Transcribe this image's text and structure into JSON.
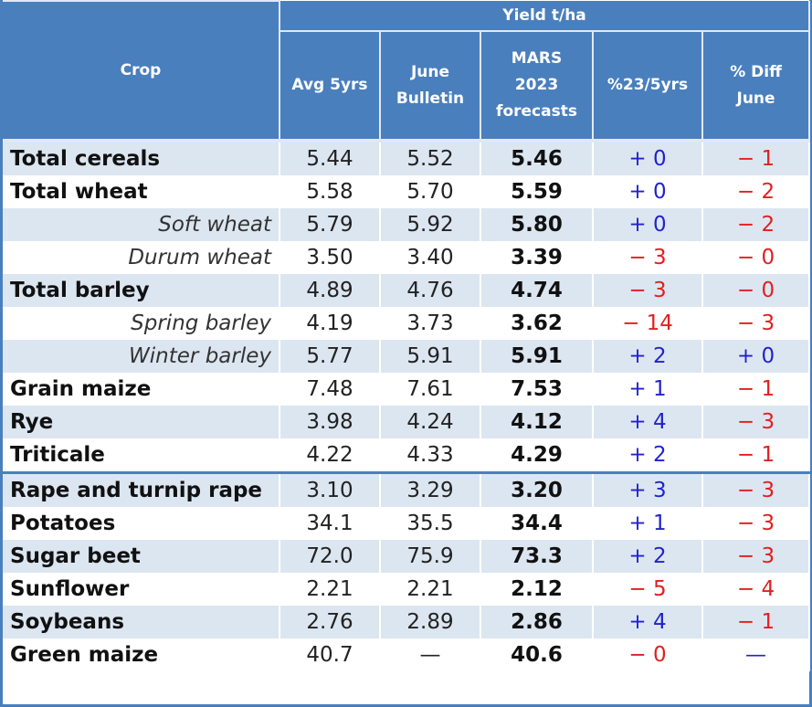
{
  "header": {
    "crop_label": "Crop",
    "group_label": "Yield t/ha",
    "columns": [
      {
        "line1": "Avg 5yrs",
        "line2": "",
        "line3": ""
      },
      {
        "line1": "June",
        "line2": "Bulletin",
        "line3": ""
      },
      {
        "line1": "MARS",
        "line2": "2023",
        "line3": "forecasts"
      },
      {
        "line1": "%23/5yrs",
        "line2": "",
        "line3": ""
      },
      {
        "line1": "% Diff",
        "line2": "June",
        "line3": ""
      }
    ]
  },
  "colors": {
    "header_bg": "#4a7fbd",
    "alt_row": "#dce6f1",
    "positive": "#2222cc",
    "negative": "#e02020"
  },
  "rows": [
    {
      "crop": "Total cereals",
      "sub": false,
      "avg5": "5.44",
      "june": "5.52",
      "mars": "5.46",
      "pct5": "+ 0",
      "pctJune": "− 1",
      "pct5Sign": "pos",
      "pctJuneSign": "neg"
    },
    {
      "crop": "Total wheat",
      "sub": false,
      "avg5": "5.58",
      "june": "5.70",
      "mars": "5.59",
      "pct5": "+ 0",
      "pctJune": "− 2",
      "pct5Sign": "pos",
      "pctJuneSign": "neg"
    },
    {
      "crop": "Soft wheat",
      "sub": true,
      "avg5": "5.79",
      "june": "5.92",
      "mars": "5.80",
      "pct5": "+ 0",
      "pctJune": "− 2",
      "pct5Sign": "pos",
      "pctJuneSign": "neg"
    },
    {
      "crop": "Durum wheat",
      "sub": true,
      "avg5": "3.50",
      "june": "3.40",
      "mars": "3.39",
      "pct5": "− 3",
      "pctJune": "− 0",
      "pct5Sign": "neg",
      "pctJuneSign": "neg"
    },
    {
      "crop": "Total barley",
      "sub": false,
      "avg5": "4.89",
      "june": "4.76",
      "mars": "4.74",
      "pct5": "− 3",
      "pctJune": "− 0",
      "pct5Sign": "neg",
      "pctJuneSign": "neg"
    },
    {
      "crop": "Spring barley",
      "sub": true,
      "avg5": "4.19",
      "june": "3.73",
      "mars": "3.62",
      "pct5": "− 14",
      "pctJune": "− 3",
      "pct5Sign": "neg",
      "pctJuneSign": "neg"
    },
    {
      "crop": "Winter barley",
      "sub": true,
      "avg5": "5.77",
      "june": "5.91",
      "mars": "5.91",
      "pct5": "+ 2",
      "pctJune": "+ 0",
      "pct5Sign": "pos",
      "pctJuneSign": "pos"
    },
    {
      "crop": "Grain maize",
      "sub": false,
      "avg5": "7.48",
      "june": "7.61",
      "mars": "7.53",
      "pct5": "+ 1",
      "pctJune": "− 1",
      "pct5Sign": "pos",
      "pctJuneSign": "neg"
    },
    {
      "crop": "Rye",
      "sub": false,
      "avg5": "3.98",
      "june": "4.24",
      "mars": "4.12",
      "pct5": "+ 4",
      "pctJune": "− 3",
      "pct5Sign": "pos",
      "pctJuneSign": "neg"
    },
    {
      "crop": "Triticale",
      "sub": false,
      "avg5": "4.22",
      "june": "4.33",
      "mars": "4.29",
      "pct5": "+ 2",
      "pctJune": "− 1",
      "pct5Sign": "pos",
      "pctJuneSign": "neg"
    },
    {
      "crop": "Rape and turnip rape",
      "sub": false,
      "avg5": "3.10",
      "june": "3.29",
      "mars": "3.20",
      "pct5": "+ 3",
      "pctJune": "− 3",
      "pct5Sign": "pos",
      "pctJuneSign": "neg"
    },
    {
      "crop": "Potatoes",
      "sub": false,
      "avg5": "34.1",
      "june": "35.5",
      "mars": "34.4",
      "pct5": "+ 1",
      "pctJune": "− 3",
      "pct5Sign": "pos",
      "pctJuneSign": "neg"
    },
    {
      "crop": "Sugar beet",
      "sub": false,
      "avg5": "72.0",
      "june": "75.9",
      "mars": "73.3",
      "pct5": "+ 2",
      "pctJune": "− 3",
      "pct5Sign": "pos",
      "pctJuneSign": "neg"
    },
    {
      "crop": "Sunflower",
      "sub": false,
      "avg5": "2.21",
      "june": "2.21",
      "mars": "2.12",
      "pct5": "− 5",
      "pctJune": "− 4",
      "pct5Sign": "neg",
      "pctJuneSign": "neg"
    },
    {
      "crop": "Soybeans",
      "sub": false,
      "avg5": "2.76",
      "june": "2.89",
      "mars": "2.86",
      "pct5": "+ 4",
      "pctJune": "− 1",
      "pct5Sign": "pos",
      "pctJuneSign": "neg"
    },
    {
      "crop": "Green maize",
      "sub": false,
      "avg5": "40.7",
      "june": "—",
      "mars": "40.6",
      "pct5": "− 0",
      "pctJune": "—",
      "pct5Sign": "neg",
      "pctJuneSign": "pos"
    }
  ]
}
